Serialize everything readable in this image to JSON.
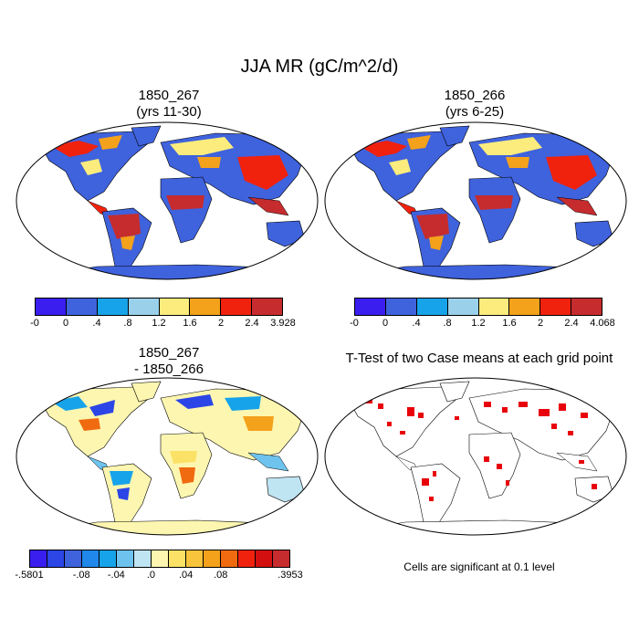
{
  "figure": {
    "title": "JJA MR (gC/m^2/d)"
  },
  "panels": [
    {
      "title_line1": "1850_267",
      "title_line2": "(yrs 11-30)",
      "colorbar": {
        "colors": [
          "#3a1ef0",
          "#3f62dd",
          "#17a3ea",
          "#9ad0ea",
          "#fbec7d",
          "#f4a21b",
          "#f0220e",
          "#c62c2e"
        ],
        "labels": [
          "-0",
          "0",
          ".4",
          ".8",
          "1.2",
          "1.6",
          "2",
          "2.4",
          "3.928"
        ]
      }
    },
    {
      "title_line1": "1850_266",
      "title_line2": "(yrs 6-25)",
      "colorbar": {
        "colors": [
          "#3a1ef0",
          "#3f62dd",
          "#17a3ea",
          "#9ad0ea",
          "#fbec7d",
          "#f4a21b",
          "#f0220e",
          "#c62c2e"
        ],
        "labels": [
          "-0",
          "0",
          ".4",
          ".8",
          "1.2",
          "1.6",
          "2",
          "2.4",
          "4.068"
        ]
      }
    },
    {
      "title_line1": "1850_267",
      "title_line2": "- 1850_266",
      "colorbar": {
        "colors": [
          "#3a1ef0",
          "#2b45e6",
          "#3f62dd",
          "#1f88ea",
          "#17a3ea",
          "#6ec3ee",
          "#bfe4f2",
          "#fdf6b0",
          "#fbe266",
          "#f7c43c",
          "#f4a21b",
          "#f06a10",
          "#f0220e",
          "#d40f0f",
          "#c62c2e"
        ],
        "labels": [
          "-.5801",
          "-.08",
          "-.04",
          ".0",
          ".04",
          ".08",
          ".3953"
        ]
      }
    },
    {
      "title_line1": "T-Test of two Case means at each grid point",
      "note": "Cells are significant at 0.1 level"
    }
  ]
}
